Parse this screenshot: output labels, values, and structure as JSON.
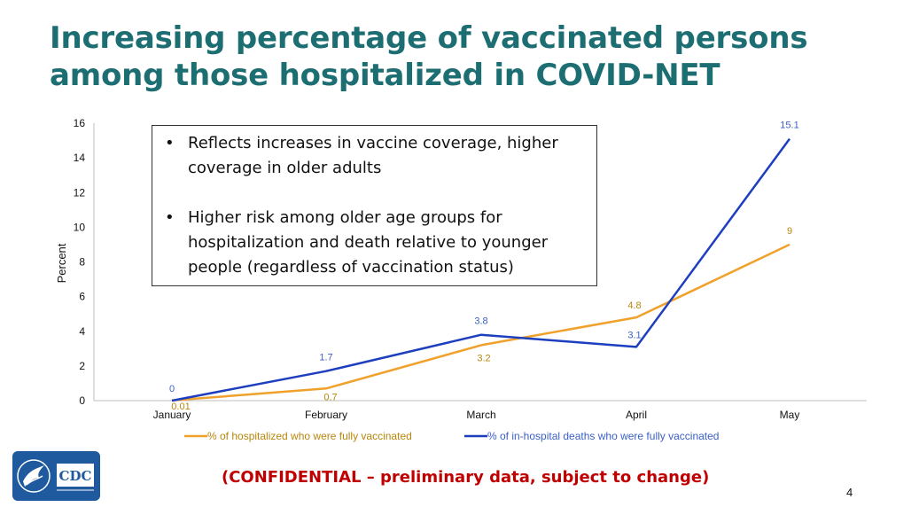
{
  "slide": {
    "title_line1": "Increasing percentage of vaccinated persons",
    "title_line2": "among those hospitalized in COVID-NET",
    "bullets": [
      "Reflects increases in vaccine coverage, higher coverage in older adults",
      "Higher risk among older age groups for hospitalization and death relative to younger people (regardless of vaccination status)"
    ],
    "confidential": "(CONFIDENTIAL – preliminary data, subject to change)",
    "page_number": "4",
    "logo_text": "CDC"
  },
  "chart_data": {
    "type": "line",
    "categories": [
      "January",
      "February",
      "March",
      "April",
      "May"
    ],
    "ylabel": "Percent",
    "ylim": [
      0,
      16
    ],
    "yticks": [
      0,
      2,
      4,
      6,
      8,
      10,
      12,
      14,
      16
    ],
    "grid": false,
    "legend_position": "bottom",
    "series": [
      {
        "name": "% of hospitalized who were fully vaccinated",
        "values": [
          0.01,
          0.7,
          3.2,
          4.8,
          9
        ],
        "labels": [
          "0.01",
          "0.7",
          "3.2",
          "4.8",
          "9"
        ],
        "color": "#f0a12b",
        "label_color": "#b8860b"
      },
      {
        "name": "% of in-hospital deaths who were fully vaccinated",
        "values": [
          0,
          1.7,
          3.8,
          3.1,
          15.1
        ],
        "labels": [
          "0",
          "1.7",
          "3.8",
          "3.1",
          "15.1"
        ],
        "color": "#1d3fbf",
        "label_color": "#3a5fc8"
      }
    ]
  }
}
